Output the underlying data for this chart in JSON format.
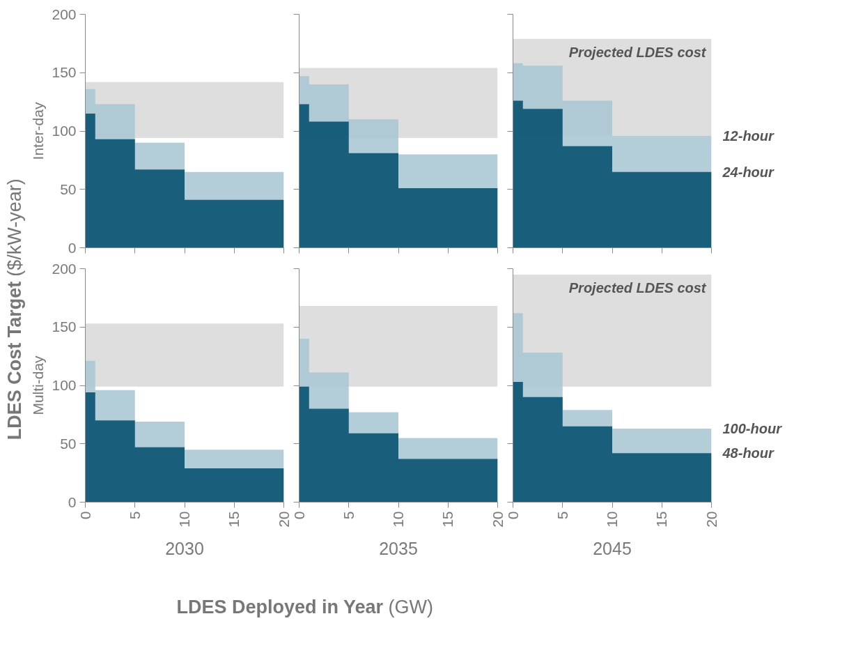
{
  "chart_data": [
    {
      "type": "area",
      "ylabel": "Inter-day",
      "tick_labels": "y",
      "x": [
        0,
        1,
        1,
        5,
        5,
        10,
        10,
        20
      ],
      "xlim": [
        0,
        20
      ],
      "xticks": [
        0,
        5,
        10,
        15,
        20
      ],
      "ylim": [
        0,
        200
      ],
      "yticks": [
        0,
        50,
        100,
        150,
        200
      ],
      "annotations": [
        "LDES Cost Target ($/kW-year)",
        "LDES Deployed in Year (GW)"
      ],
      "bands": [
        {
          "axis": "y",
          "from": 94,
          "to": 142,
          "color": "#7f7f7f"
        }
      ],
      "series": [
        {
          "color": "#a9c7d3",
          "values": [
            136,
            136,
            123,
            123,
            90,
            90,
            65,
            65
          ]
        },
        {
          "color": "#034e6d",
          "values": [
            115,
            115,
            93,
            93,
            67,
            67,
            41,
            41
          ]
        }
      ]
    },
    {
      "type": "area",
      "tick_labels": false,
      "x": [
        0,
        1,
        1,
        5,
        5,
        10,
        10,
        20
      ],
      "xlim": [
        0,
        20
      ],
      "xticks": [
        0,
        5,
        10,
        15,
        20
      ],
      "ylim": [
        0,
        200
      ],
      "yticks": [
        0,
        50,
        100,
        150,
        200
      ],
      "bands": [
        {
          "axis": "y",
          "from": 94,
          "to": 154,
          "color": "#7f7f7f"
        }
      ],
      "series": [
        {
          "color": "#a9c7d3",
          "values": [
            147,
            147,
            140,
            140,
            110,
            110,
            80,
            80
          ]
        },
        {
          "color": "#034e6d",
          "values": [
            123,
            123,
            108,
            108,
            81,
            81,
            51,
            51
          ]
        }
      ]
    },
    {
      "type": "area",
      "tick_labels": false,
      "x": [
        0,
        1,
        1,
        5,
        5,
        10,
        10,
        20
      ],
      "xlim": [
        0,
        20
      ],
      "xticks": [
        0,
        5,
        10,
        15,
        20
      ],
      "ylim": [
        0,
        200
      ],
      "yticks": [
        0,
        50,
        100,
        150,
        200
      ],
      "bands": [
        {
          "axis": "y",
          "from": 96,
          "to": 179,
          "color": "#7f7f7f",
          "label": "Projected LDES cost"
        }
      ],
      "series": [
        {
          "name": "12-hour",
          "color": "#a9c7d3",
          "values": [
            158,
            158,
            156,
            156,
            126,
            126,
            96,
            96
          ]
        },
        {
          "name": "24-hour",
          "color": "#034e6d",
          "values": [
            126,
            126,
            119,
            119,
            87,
            87,
            65,
            65
          ]
        }
      ]
    },
    {
      "type": "area",
      "ylabel": "Multi-day",
      "xlabel": "2030",
      "x": [
        0,
        1,
        1,
        5,
        5,
        10,
        10,
        20
      ],
      "xlim": [
        0,
        20
      ],
      "xticks": [
        0,
        5,
        10,
        15,
        20
      ],
      "ylim": [
        0,
        200
      ],
      "yticks": [
        0,
        50,
        100,
        150,
        200
      ],
      "bands": [
        {
          "axis": "y",
          "from": 99,
          "to": 153,
          "color": "#7f7f7f"
        }
      ],
      "series": [
        {
          "color": "#a9c7d3",
          "values": [
            121,
            121,
            96,
            96,
            69,
            69,
            45,
            45
          ]
        },
        {
          "color": "#034e6d",
          "values": [
            94,
            94,
            70,
            70,
            47,
            47,
            29,
            29
          ]
        }
      ]
    },
    {
      "type": "area",
      "xlabel": "2035",
      "tick_labels": "x",
      "x": [
        0,
        1,
        1,
        5,
        5,
        10,
        10,
        20
      ],
      "xlim": [
        0,
        20
      ],
      "xticks": [
        0,
        5,
        10,
        15,
        20
      ],
      "ylim": [
        0,
        200
      ],
      "yticks": [
        0,
        50,
        100,
        150,
        200
      ],
      "bands": [
        {
          "axis": "y",
          "from": 99,
          "to": 168,
          "color": "#7f7f7f"
        }
      ],
      "series": [
        {
          "color": "#a9c7d3",
          "values": [
            140,
            140,
            111,
            111,
            77,
            77,
            55,
            55
          ]
        },
        {
          "color": "#034e6d",
          "values": [
            99,
            99,
            80,
            80,
            59,
            59,
            37,
            37
          ]
        }
      ]
    },
    {
      "type": "area",
      "xlabel": "2045",
      "tick_labels": "x",
      "x": [
        0,
        1,
        1,
        5,
        5,
        10,
        10,
        20
      ],
      "xlim": [
        0,
        20
      ],
      "xticks": [
        0,
        5,
        10,
        15,
        20
      ],
      "ylim": [
        0,
        200
      ],
      "yticks": [
        0,
        50,
        100,
        150,
        200
      ],
      "bands": [
        {
          "axis": "y",
          "from": 99,
          "to": 195,
          "color": "#7f7f7f",
          "label": "Projected LDES cost"
        }
      ],
      "series": [
        {
          "name": "100-hour",
          "color": "#a9c7d3",
          "values": [
            162,
            162,
            128,
            128,
            79,
            79,
            63,
            63
          ]
        },
        {
          "name": "48-hour",
          "color": "#034e6d",
          "values": [
            103,
            103,
            90,
            90,
            65,
            65,
            42,
            42
          ]
        }
      ]
    }
  ]
}
